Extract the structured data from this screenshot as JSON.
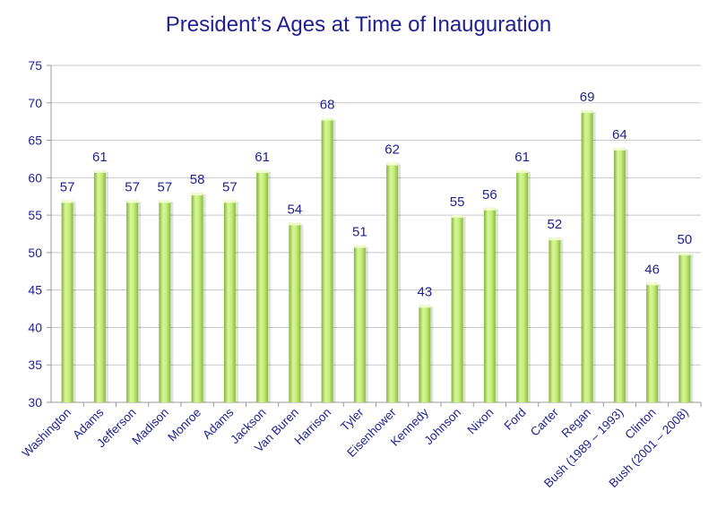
{
  "chart_data": {
    "type": "bar",
    "title": "President’s Ages at Time of Inauguration",
    "xlabel": "",
    "ylabel": "",
    "ylim": [
      30,
      75
    ],
    "yticks": [
      30,
      35,
      40,
      45,
      50,
      55,
      60,
      65,
      70,
      75
    ],
    "grid": true,
    "legend": "none",
    "bar_color": "#a6d84a",
    "categories": [
      "Washington",
      "Adams",
      "Jefferson",
      "Madison",
      "Monroe",
      "Adams",
      "Jackson",
      "Van Buren",
      "Harrison",
      "Tyler",
      "Eisenhower",
      "Kennedy",
      "Johnson",
      "Nixon",
      "Ford",
      "Carter",
      "Regan",
      "Bush (1989 – 1993)",
      "Clinton",
      "Bush (2001 – 2008)"
    ],
    "values": [
      57,
      61,
      57,
      57,
      58,
      57,
      61,
      54,
      68,
      51,
      62,
      43,
      55,
      56,
      61,
      52,
      69,
      64,
      46,
      50
    ]
  }
}
